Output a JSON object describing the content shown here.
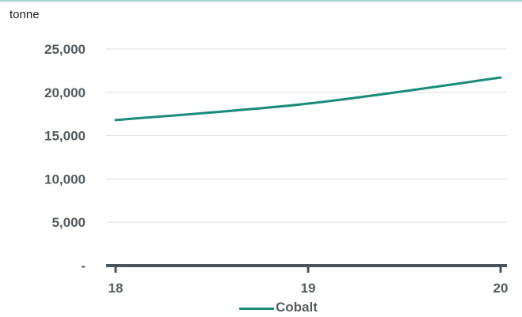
{
  "chart_data": {
    "type": "line",
    "unit_label": "tonne",
    "x": [
      "18",
      "19",
      "20"
    ],
    "series": [
      {
        "name": "Cobalt",
        "values": [
          16800,
          18700,
          21700
        ]
      }
    ],
    "y_ticks": [
      {
        "value": 0,
        "label": "-"
      },
      {
        "value": 5000,
        "label": "5,000"
      },
      {
        "value": 10000,
        "label": "10,000"
      },
      {
        "value": 15000,
        "label": "15,000"
      },
      {
        "value": 20000,
        "label": "20,000"
      },
      {
        "value": 25000,
        "label": "25,000"
      }
    ],
    "ylim": [
      0,
      25000
    ],
    "grid": true,
    "legend_position": "bottom",
    "colors": {
      "series": "#1a8c7a",
      "axis": "#4a5358",
      "grid": "#dddddd",
      "text": "#555b60"
    }
  }
}
